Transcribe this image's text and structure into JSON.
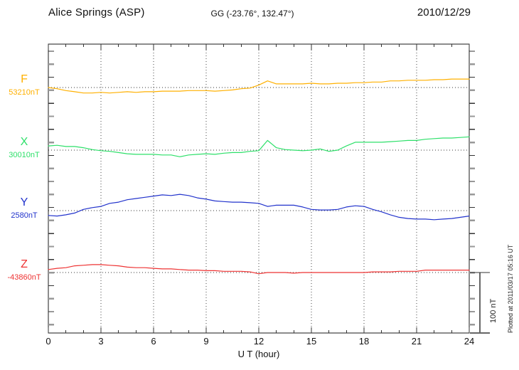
{
  "header": {
    "station": "Alice Springs (ASP)",
    "coords": "GG (-23.76°, 132.47°)",
    "date": "2010/12/29"
  },
  "x_axis": {
    "label": "U T (hour)",
    "tick_labels": [
      "0",
      "3",
      "6",
      "9",
      "12",
      "15",
      "18",
      "21",
      "24"
    ],
    "min_hour": 0,
    "max_hour": 24
  },
  "scale_bar": {
    "label": "100 nT",
    "span_nT": 100
  },
  "plot_note": "Plotted at 2011/03/17 05:16 UT",
  "colors": {
    "F": "#FFB000",
    "X": "#2EE06A",
    "Y": "#2233CC",
    "Z": "#EE3333",
    "frame": "#1a1a1a",
    "grid_dots": "#444444",
    "tick_dark": "#333333",
    "tick_gray": "#999999",
    "scalebar": "#666666"
  },
  "chart_data": {
    "type": "line",
    "title": "Magnetogram, Alice Springs (ASP), 2010/12/29",
    "xlabel": "U T (hour)",
    "x_unit": "hour",
    "x_start": 0,
    "x_step": 0.5,
    "x_range": [
      0,
      24
    ],
    "grid": "dotted vertical every 3 h; dotted horizontal baseline per component",
    "note": "offsets_nT are deviations from each component baseline value (dotted line)",
    "series": [
      {
        "name": "F",
        "baseline_label": "53210nT",
        "baseline_nT": 53210,
        "color": "#FFB000",
        "offsets_nT": [
          0,
          -2,
          -5,
          -7,
          -9,
          -9,
          -8,
          -9,
          -8,
          -7,
          -8,
          -7,
          -7,
          -6,
          -6,
          -6,
          -5,
          -5,
          -5,
          -6,
          -5,
          -4,
          -2,
          -1,
          4,
          11,
          6,
          6,
          6,
          6,
          7,
          6,
          6,
          7,
          7,
          8,
          8,
          9,
          9,
          11,
          11,
          12,
          12,
          12,
          13,
          13,
          14,
          14,
          14
        ]
      },
      {
        "name": "X",
        "baseline_label": "30010nT",
        "baseline_nT": 30010,
        "color": "#2EE06A",
        "offsets_nT": [
          7,
          8,
          6,
          6,
          4,
          1,
          -1,
          -2,
          -4,
          -6,
          -7,
          -7,
          -7,
          -8,
          -8,
          -11,
          -8,
          -7,
          -6,
          -7,
          -5,
          -4,
          -4,
          -2,
          -1,
          16,
          4,
          1,
          0,
          -1,
          0,
          2,
          -2,
          0,
          7,
          13,
          13,
          13,
          13,
          14,
          15,
          16,
          16,
          18,
          19,
          20,
          20,
          21,
          22
        ]
      },
      {
        "name": "Y",
        "baseline_label": "2580nT",
        "baseline_nT": 2580,
        "color": "#2233CC",
        "offsets_nT": [
          -8,
          -9,
          -7,
          -4,
          2,
          5,
          7,
          12,
          14,
          18,
          20,
          22,
          24,
          26,
          25,
          27,
          25,
          21,
          19,
          16,
          15,
          14,
          14,
          13,
          12,
          7,
          9,
          9,
          9,
          6,
          2,
          1,
          1,
          2,
          6,
          8,
          7,
          2,
          -2,
          -7,
          -11,
          -13,
          -14,
          -14,
          -15,
          -14,
          -13,
          -11,
          -9
        ]
      },
      {
        "name": "Z",
        "baseline_label": "-43860nT",
        "baseline_nT": -43860,
        "color": "#EE3333",
        "offsets_nT": [
          5,
          7,
          8,
          11,
          12,
          13,
          13,
          12,
          11,
          9,
          8,
          8,
          7,
          6,
          6,
          5,
          4,
          4,
          3,
          3,
          2,
          2,
          2,
          1,
          -2,
          0,
          0,
          0,
          -1,
          0,
          0,
          0,
          0,
          0,
          0,
          0,
          0,
          1,
          1,
          1,
          2,
          2,
          2,
          4,
          4,
          4,
          4,
          4,
          4
        ]
      }
    ]
  }
}
